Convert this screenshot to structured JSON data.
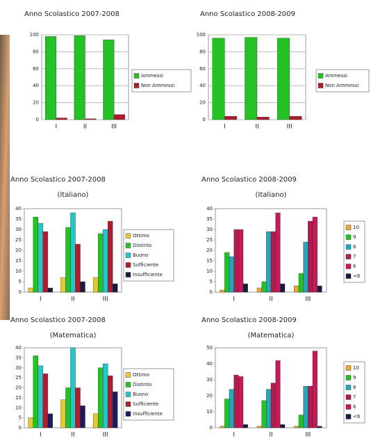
{
  "chart_data": [
    {
      "type": "bar",
      "title": "Anno Scolastico 2007-2008",
      "categories": [
        "I",
        "II",
        "III"
      ],
      "series": [
        {
          "name": "Ammessi",
          "color": "#22c322",
          "values": [
            98,
            99,
            94
          ]
        },
        {
          "name": "Non Ammessi",
          "color": "#b01c2e",
          "values": [
            2,
            1,
            6
          ]
        }
      ],
      "ylim": [
        0,
        100
      ],
      "yticks": [
        0,
        20,
        40,
        60,
        80,
        100
      ],
      "grid": true,
      "legend": "right"
    },
    {
      "type": "bar",
      "title": "Anno Scolastico 2008-2009",
      "categories": [
        "I",
        "II",
        "III"
      ],
      "series": [
        {
          "name": "Ammessi",
          "color": "#22c322",
          "values": [
            96,
            97,
            96
          ]
        },
        {
          "name": "Non Ammessi",
          "color": "#b01c2e",
          "values": [
            4,
            3,
            4
          ]
        }
      ],
      "ylim": [
        0,
        100
      ],
      "yticks": [
        0,
        20,
        40,
        60,
        80,
        100
      ],
      "grid": true,
      "legend": "right"
    },
    {
      "type": "bar",
      "title": "Anno Scolastico 2007-2008",
      "subtitle": "(Italiano)",
      "categories": [
        "I",
        "II",
        "III"
      ],
      "series": [
        {
          "name": "Ottimo",
          "color": "#e8c832",
          "values": [
            2,
            7,
            7
          ]
        },
        {
          "name": "Distinto",
          "color": "#22c322",
          "values": [
            36,
            31,
            28
          ]
        },
        {
          "name": "Buono",
          "color": "#22c8c8",
          "values": [
            33,
            38,
            30
          ]
        },
        {
          "name": "Sufficiente",
          "color": "#b01c2e",
          "values": [
            29,
            23,
            34
          ]
        },
        {
          "name": "Insufficiente",
          "color": "#1a1a40",
          "values": [
            2,
            5,
            4
          ]
        }
      ],
      "ylim": [
        0,
        40
      ],
      "yticks": [
        0,
        5,
        10,
        15,
        20,
        25,
        30,
        35,
        40
      ],
      "grid": false,
      "legend": "right"
    },
    {
      "type": "bar",
      "title": "Anno Scolastico 2008-2009",
      "subtitle": "(Italiano)",
      "categories": [
        "I",
        "II",
        "III"
      ],
      "series": [
        {
          "name": "10",
          "color": "#e8a832",
          "values": [
            1,
            2,
            3
          ]
        },
        {
          "name": "9",
          "color": "#22c322",
          "values": [
            19,
            5,
            9
          ]
        },
        {
          "name": "8",
          "color": "#22a8b8",
          "values": [
            17,
            29,
            24
          ]
        },
        {
          "name": "7",
          "color": "#b01c4e",
          "values": [
            30,
            29,
            34
          ]
        },
        {
          "name": "6",
          "color": "#c8185a",
          "values": [
            30,
            38,
            36
          ]
        },
        {
          "name": "<6",
          "color": "#1a1a40",
          "values": [
            4,
            4,
            3
          ]
        }
      ],
      "ylim": [
        0,
        40
      ],
      "yticks": [
        0,
        5,
        10,
        15,
        20,
        25,
        30,
        35,
        40
      ],
      "grid": false,
      "legend": "right"
    },
    {
      "type": "bar",
      "title": "Anno Scolastico 2007-2008",
      "subtitle": "(Matematica)",
      "categories": [
        "I",
        "II",
        "III"
      ],
      "series": [
        {
          "name": "Ottimo",
          "color": "#e8c832",
          "values": [
            5,
            14,
            7
          ]
        },
        {
          "name": "Distinto",
          "color": "#22c322",
          "values": [
            36,
            20,
            30
          ]
        },
        {
          "name": "Buono",
          "color": "#22c8c8",
          "values": [
            31,
            40,
            32
          ]
        },
        {
          "name": "Sufficiente",
          "color": "#b01c2e",
          "values": [
            27,
            20,
            26
          ]
        },
        {
          "name": "Insufficiente",
          "color": "#1a1a60",
          "values": [
            7,
            11,
            18
          ]
        }
      ],
      "ylim": [
        0,
        40
      ],
      "yticks": [
        0,
        5,
        10,
        15,
        20,
        25,
        30,
        35,
        40
      ],
      "grid": false,
      "legend": "right"
    },
    {
      "type": "bar",
      "title": "Anno Scolastico 2008-2009",
      "subtitle": "(Matematica)",
      "categories": [
        "I",
        "II",
        "III"
      ],
      "series": [
        {
          "name": "10",
          "color": "#e8a832",
          "values": [
            1,
            1,
            1
          ]
        },
        {
          "name": "9",
          "color": "#22c322",
          "values": [
            18,
            17,
            8
          ]
        },
        {
          "name": "8",
          "color": "#22a8b8",
          "values": [
            24,
            24,
            26
          ]
        },
        {
          "name": "7",
          "color": "#b01c4e",
          "values": [
            33,
            28,
            26
          ]
        },
        {
          "name": "6",
          "color": "#c8185a",
          "values": [
            32,
            42,
            48
          ]
        },
        {
          "name": "<6",
          "color": "#1a1a40",
          "values": [
            2,
            2,
            1
          ]
        }
      ],
      "ylim": [
        0,
        50
      ],
      "yticks": [
        0,
        10,
        20,
        30,
        40,
        50
      ],
      "grid": false,
      "legend": "right"
    }
  ]
}
